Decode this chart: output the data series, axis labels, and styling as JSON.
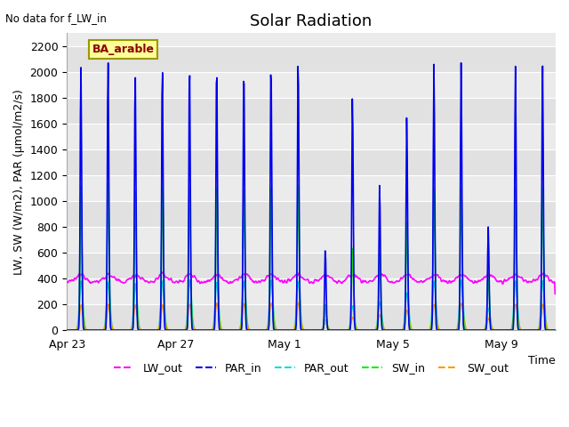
{
  "title": "Solar Radiation",
  "top_left_text": "No data for f_LW_in",
  "legend_label_text": "BA_arable",
  "xlabel": "Time",
  "ylabel": "LW, SW (W/m2), PAR (μmol/m2/s)",
  "ylim": [
    0,
    2300
  ],
  "yticks": [
    0,
    200,
    400,
    600,
    800,
    1000,
    1200,
    1400,
    1600,
    1800,
    2000,
    2200
  ],
  "xtick_labels": [
    "Apr 23",
    "Apr 27",
    "May 1",
    "May 5",
    "May 9"
  ],
  "xtick_positions": [
    0,
    4,
    8,
    12,
    16
  ],
  "n_days": 18,
  "series": {
    "LW_out": {
      "color": "#ff00ff",
      "lw": 1.2
    },
    "PAR_in": {
      "color": "#0000ee",
      "lw": 1.2
    },
    "PAR_out": {
      "color": "#00dddd",
      "lw": 1.2
    },
    "SW_in": {
      "color": "#00ee00",
      "lw": 1.2
    },
    "SW_out": {
      "color": "#ff9900",
      "lw": 1.2
    }
  },
  "plot_bg_color": "#ebebeb",
  "grid_color": "#ffffff",
  "title_fontsize": 13,
  "axis_label_fontsize": 9,
  "tick_fontsize": 9,
  "par_in_peaks": [
    2060,
    2110,
    2010,
    2070,
    2070,
    2080,
    2060,
    2080,
    2120,
    630,
    1820,
    1130,
    1650,
    2060,
    2070,
    800,
    2050,
    2060
  ],
  "sw_in_peaks": [
    1120,
    1150,
    1090,
    1130,
    1120,
    1140,
    1130,
    1140,
    1150,
    200,
    640,
    600,
    840,
    1090,
    1100,
    440,
    1100,
    1100
  ],
  "sw_out_peaks": [
    195,
    200,
    195,
    195,
    200,
    210,
    205,
    210,
    215,
    55,
    100,
    120,
    155,
    200,
    210,
    90,
    200,
    200
  ],
  "par_out_peaks": [
    380,
    370,
    360,
    380,
    390,
    370,
    380,
    390,
    380,
    80,
    190,
    220,
    290,
    380,
    390,
    170,
    380,
    380
  ],
  "lw_base": 370,
  "lw_bump": 60,
  "figsize": [
    6.4,
    4.8
  ],
  "dpi": 100
}
